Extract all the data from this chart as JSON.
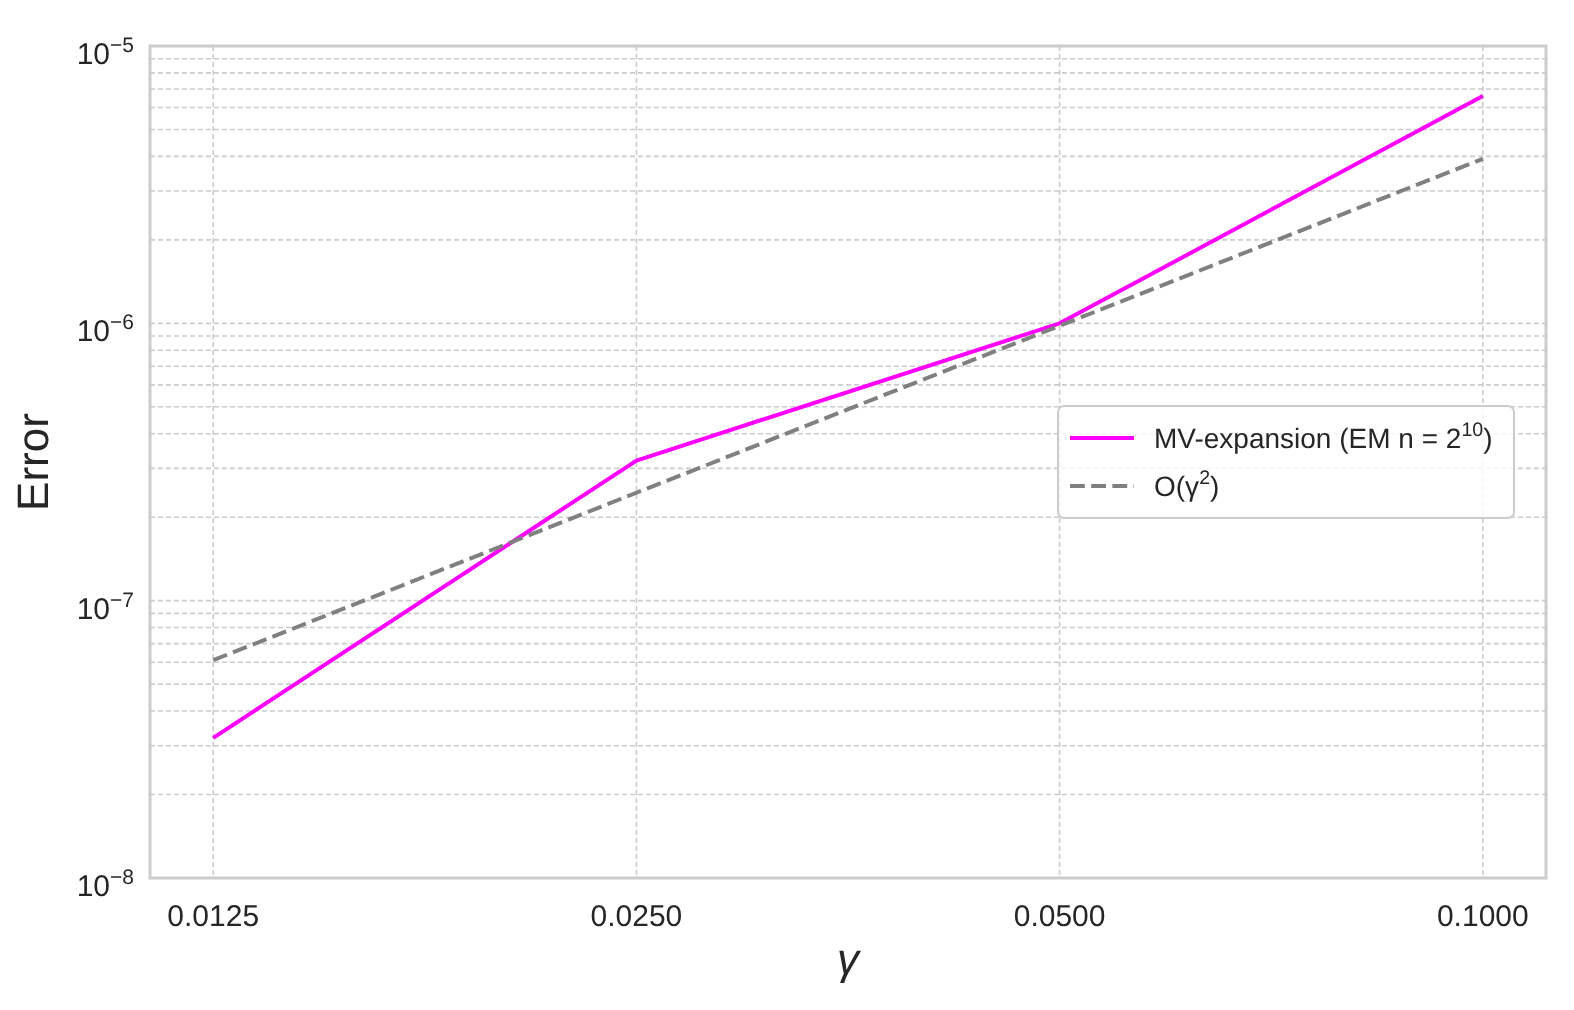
{
  "chart_data": {
    "type": "line",
    "xlabel": "γ",
    "ylabel": "Error",
    "x": [
      0.0125,
      0.025,
      0.05,
      0.1
    ],
    "series": [
      {
        "name": "MV-expansion (EM n = 2$^{10}$)",
        "color": "#ff00ff",
        "line_style": "solid",
        "values": [
          3.2e-08,
          3.2e-07,
          1e-06,
          6.6e-06
        ]
      },
      {
        "name": "O(γ$^{2}$)",
        "color": "#808080",
        "line_style": "dashed",
        "values": [
          6.1e-08,
          2.45e-07,
          9.8e-07,
          3.92e-06
        ]
      }
    ],
    "log": "xy",
    "xlim": [
      0.01127,
      0.1109
    ],
    "ylim": [
      1e-08,
      1e-05
    ],
    "xticks": [
      0.0125,
      {
        "value": 0.025,
        "label": "0.0250"
      },
      {
        "value": 0.05,
        "label": "0.0500"
      },
      {
        "value": 0.1,
        "label": "0.1000"
      }
    ],
    "yticks": [
      {
        "value": 1e-08,
        "label": "10$^{−8}$"
      },
      {
        "value": 2e-08,
        "label": null
      },
      {
        "value": 3e-08,
        "label": null
      },
      {
        "value": 4e-08,
        "label": null
      },
      {
        "value": 5e-08,
        "label": null
      },
      {
        "value": 6e-08,
        "label": null
      },
      {
        "value": 7e-08,
        "label": null
      },
      {
        "value": 8e-08,
        "label": null
      },
      {
        "value": 9e-08,
        "label": null
      },
      {
        "value": 1e-07,
        "label": "10$^{−7}$"
      },
      {
        "value": 2e-07,
        "label": null
      },
      {
        "value": 3e-07,
        "label": null
      },
      {
        "value": 4e-07,
        "label": null
      },
      {
        "value": 5e-07,
        "label": null
      },
      {
        "value": 6e-07,
        "label": null
      },
      {
        "value": 7e-07,
        "label": null
      },
      {
        "value": 8e-07,
        "label": null
      },
      {
        "value": 9e-07,
        "label": null
      },
      {
        "value": 1e-06,
        "label": "10$^{−6}$"
      },
      {
        "value": 2e-06,
        "label": null
      },
      {
        "value": 3e-06,
        "label": null
      },
      {
        "value": 4e-06,
        "label": null
      },
      {
        "value": 5e-06,
        "label": null
      },
      {
        "value": 6e-06,
        "label": null
      },
      {
        "value": 7e-06,
        "label": null
      },
      {
        "value": 8e-06,
        "label": null
      },
      {
        "value": 9e-06,
        "label": null
      },
      {
        "value": 1e-05,
        "label": "10$^{−5}$"
      }
    ],
    "grid": true,
    "legend": "right"
  }
}
